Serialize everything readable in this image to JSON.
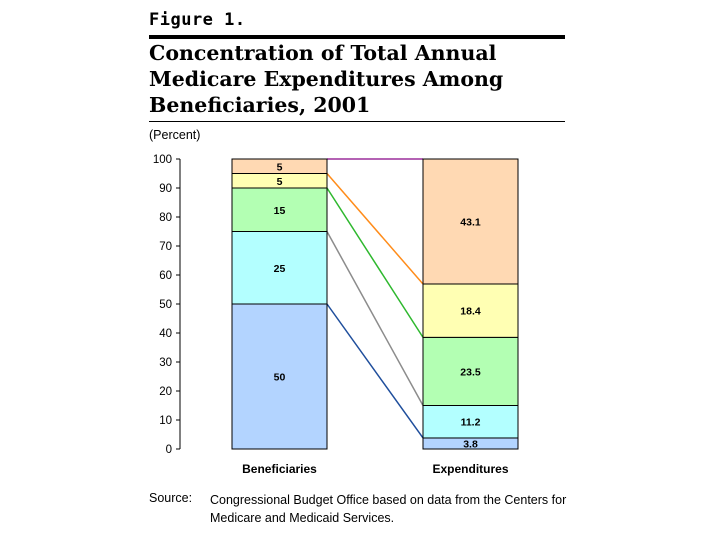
{
  "figure": {
    "label": "Figure 1.",
    "title": "Concentration of Total Annual Medicare Expenditures Among Beneficiaries, 2001",
    "unit": "(Percent)"
  },
  "source": {
    "label": "Source:",
    "text": "Congressional Budget Office based on data from the Centers for Medicare and Medicaid Services."
  },
  "chart_data": {
    "type": "stacked-bar",
    "title": "Concentration of Total Annual Medicare Expenditures Among Beneficiaries, 2001",
    "ylabel": "(Percent)",
    "ylim": [
      0,
      100
    ],
    "yticks": [
      0,
      10,
      20,
      30,
      40,
      50,
      60,
      70,
      80,
      90,
      100
    ],
    "categories": [
      "Beneficiaries",
      "Expenditures"
    ],
    "segments": [
      {
        "color": "#b3d4ff",
        "line_color": "#1f4e9c",
        "values": [
          50,
          3.8
        ],
        "labels": [
          "50",
          "3.8"
        ]
      },
      {
        "color": "#b3ffff",
        "line_color": "#8c8c8c",
        "values": [
          25,
          11.2
        ],
        "labels": [
          "25",
          "11.2"
        ]
      },
      {
        "color": "#b3ffb3",
        "line_color": "#2eb82e",
        "values": [
          15,
          23.5
        ],
        "labels": [
          "15",
          "23.5"
        ]
      },
      {
        "color": "#ffffb3",
        "line_color": "#ff8c1a",
        "values": [
          5,
          18.4
        ],
        "labels": [
          "5",
          "18.4"
        ]
      },
      {
        "color": "#ffd9b3",
        "line_color": "#9c2e9c",
        "values": [
          5,
          43.1
        ],
        "labels": [
          "5",
          "43.1"
        ]
      }
    ]
  }
}
